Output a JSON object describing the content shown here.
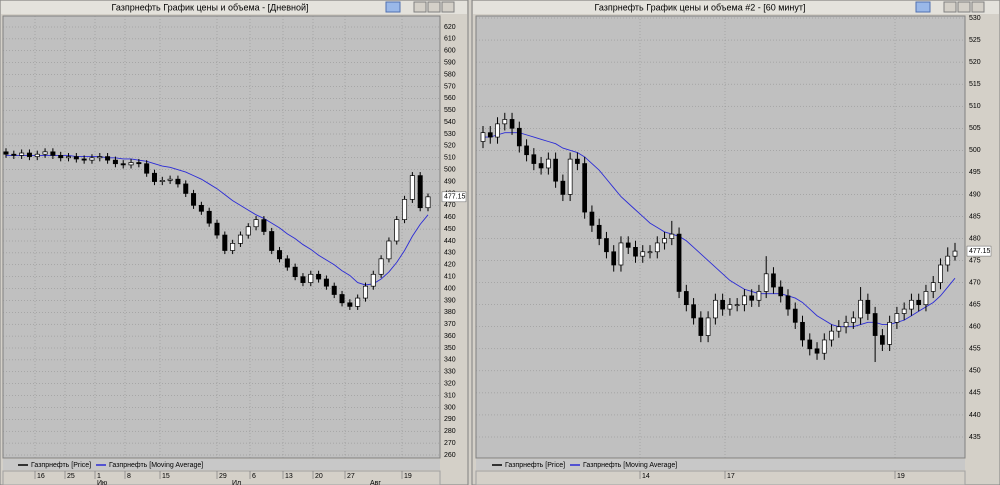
{
  "chart_data": [
    {
      "type": "candlestick",
      "title": "Газпрнефть График цены и объема - [Дневной]",
      "series": [
        {
          "name": "Газпрнефть [Price]",
          "color": "#000000",
          "open": [
            515,
            513,
            512,
            514,
            511,
            513,
            515,
            512,
            510,
            511,
            509,
            508,
            510,
            511,
            508,
            505,
            504,
            506,
            505,
            497,
            490,
            491,
            492,
            488,
            480,
            470,
            465,
            455,
            445,
            432,
            438,
            445,
            452,
            458,
            448,
            432,
            425,
            418,
            410,
            405,
            412,
            408,
            402,
            395,
            388,
            385,
            392,
            402,
            412,
            425,
            440,
            458,
            475,
            495,
            468
          ],
          "high": [
            518,
            516,
            517,
            517,
            516,
            518,
            518,
            515,
            514,
            514,
            512,
            513,
            514,
            514,
            511,
            508,
            509,
            509,
            508,
            500,
            494,
            495,
            495,
            491,
            483,
            473,
            468,
            458,
            448,
            441,
            448,
            455,
            461,
            461,
            451,
            435,
            428,
            421,
            413,
            415,
            415,
            411,
            405,
            398,
            391,
            395,
            405,
            415,
            428,
            443,
            461,
            478,
            498,
            498,
            480
          ],
          "low": [
            510,
            509,
            509,
            508,
            508,
            510,
            509,
            507,
            507,
            506,
            505,
            505,
            507,
            505,
            502,
            501,
            501,
            502,
            494,
            487,
            487,
            488,
            485,
            477,
            467,
            462,
            452,
            442,
            429,
            429,
            435,
            442,
            449,
            445,
            429,
            422,
            415,
            407,
            402,
            402,
            405,
            399,
            392,
            385,
            382,
            382,
            389,
            399,
            409,
            422,
            437,
            455,
            472,
            465,
            465
          ],
          "close": [
            513,
            512,
            514,
            511,
            513,
            515,
            512,
            510,
            511,
            509,
            508,
            510,
            511,
            508,
            505,
            504,
            506,
            505,
            497,
            490,
            491,
            492,
            488,
            480,
            470,
            465,
            455,
            445,
            432,
            438,
            445,
            452,
            458,
            448,
            432,
            425,
            418,
            410,
            405,
            412,
            408,
            402,
            395,
            388,
            385,
            392,
            402,
            412,
            425,
            440,
            458,
            475,
            495,
            468,
            477.15
          ]
        },
        {
          "name": "Газпрнефть [Moving Average]",
          "color": "#2b2bd6",
          "values": [
            512,
            512,
            512,
            512,
            512,
            512,
            512,
            512,
            512,
            511,
            511,
            511,
            511,
            510,
            510,
            509,
            509,
            508,
            507,
            505,
            503,
            502,
            500,
            498,
            495,
            492,
            488,
            484,
            479,
            474,
            470,
            466,
            462,
            459,
            455,
            451,
            446,
            442,
            437,
            433,
            428,
            424,
            420,
            415,
            411,
            405,
            403,
            404,
            408,
            414,
            422,
            432,
            444,
            454,
            462
          ]
        }
      ],
      "ylim": [
        260,
        620
      ],
      "yticks": [
        620,
        610,
        600,
        590,
        580,
        570,
        560,
        550,
        540,
        530,
        520,
        510,
        500,
        490,
        480,
        470,
        460,
        450,
        440,
        430,
        420,
        410,
        400,
        390,
        380,
        370,
        360,
        350,
        340,
        330,
        320,
        310,
        300,
        290,
        280,
        270,
        260
      ],
      "xtick_labels": [
        "16",
        "25",
        "1",
        "8",
        "15",
        "29",
        "6",
        "13",
        "20",
        "27",
        "19"
      ],
      "month_labels": [
        "Ию",
        "Ил",
        "Авг"
      ],
      "grid": true
    },
    {
      "type": "candlestick",
      "title": "Газпрнефть График цены и объема #2 - [60 минут]",
      "series": [
        {
          "name": "Газпрнефть [Price]",
          "color": "#000000",
          "open": [
            502,
            504,
            503,
            506,
            507,
            505,
            501,
            499,
            497,
            496,
            498,
            493,
            490,
            498,
            497,
            486,
            483,
            480,
            477,
            474,
            479,
            478,
            476,
            477,
            477,
            479,
            480,
            481,
            468,
            465,
            462,
            458,
            462,
            466,
            464,
            465,
            465,
            467,
            466,
            468,
            472,
            469,
            467,
            464,
            461,
            457,
            455,
            454,
            457,
            459,
            460,
            461,
            462,
            466,
            463,
            458,
            456,
            461,
            463,
            464,
            466,
            465,
            468,
            470,
            474,
            476
          ],
          "high": [
            505.5,
            505.5,
            507.5,
            508.5,
            508.5,
            506.5,
            502.5,
            500.5,
            498.5,
            499.5,
            499.5,
            494.5,
            499.5,
            499.5,
            498.5,
            487.5,
            484.5,
            481.5,
            478.5,
            480.5,
            480.5,
            479.5,
            478.5,
            478.5,
            480.5,
            481.5,
            484,
            482.5,
            469.5,
            466.5,
            463.5,
            463.5,
            467.5,
            467.5,
            466.5,
            466.5,
            468.5,
            468.5,
            469.5,
            476,
            473.5,
            470.5,
            468.5,
            465.5,
            462.5,
            458.5,
            456.5,
            458.5,
            460.5,
            461.5,
            462.5,
            463.5,
            469,
            467.5,
            464.5,
            459.5,
            462.5,
            464.5,
            465.5,
            467.5,
            467.5,
            469.5,
            471.5,
            475.5,
            478,
            479
          ],
          "low": [
            500.5,
            501.5,
            501.5,
            504.5,
            503.5,
            499.5,
            497.5,
            495.5,
            494.5,
            494.5,
            491.5,
            488.5,
            488.5,
            495.5,
            484.5,
            481.5,
            478.5,
            475.5,
            472.5,
            472.5,
            476.5,
            474.5,
            474.5,
            475.5,
            475.5,
            477.5,
            478.5,
            466.5,
            463.5,
            460.5,
            456.5,
            456.5,
            460.5,
            462.5,
            462.5,
            463.5,
            463.5,
            464.5,
            464.5,
            466.5,
            467.5,
            465.5,
            462.5,
            459.5,
            455.5,
            453.5,
            452.5,
            452.5,
            455.5,
            457.5,
            458.5,
            459.5,
            460.5,
            461.5,
            452,
            454.5,
            454.5,
            459.5,
            461.5,
            462.5,
            463.5,
            463.5,
            466.5,
            468.5,
            472.5,
            475
          ],
          "close": [
            504,
            503,
            506,
            507,
            505,
            501,
            499,
            497,
            496,
            498,
            493,
            490,
            498,
            497,
            486,
            483,
            480,
            477,
            474,
            479,
            478,
            476,
            477,
            477,
            479,
            480,
            481,
            468,
            465,
            462,
            458,
            462,
            466,
            464,
            465,
            465,
            467,
            466,
            468,
            472,
            469,
            467,
            464,
            461,
            457,
            455,
            454,
            457,
            459,
            460,
            461,
            462,
            466,
            463,
            458,
            456,
            461,
            463,
            464,
            466,
            465,
            468,
            470,
            474,
            476,
            477.15
          ]
        },
        {
          "name": "Газпрнефть [Moving Average]",
          "color": "#2b2bd6",
          "values": [
            503,
            503,
            503.5,
            504,
            504,
            504,
            503.5,
            503,
            502.5,
            502,
            501.5,
            500.5,
            500,
            499.5,
            498.5,
            497,
            495.5,
            493.5,
            491.5,
            489.5,
            488,
            486.5,
            485,
            483.5,
            482.5,
            481.5,
            481,
            480.5,
            479.5,
            478,
            476.5,
            475,
            473.5,
            472,
            470.5,
            469.5,
            468.5,
            468,
            467.5,
            467.5,
            467.5,
            467.5,
            467,
            466.5,
            465.5,
            464,
            462.5,
            461.5,
            460.5,
            460,
            460,
            460,
            460.5,
            461,
            461,
            460.5,
            460.5,
            461,
            461.5,
            462.5,
            463.5,
            464.5,
            465.5,
            467,
            469,
            471
          ]
        }
      ],
      "ylim": [
        435,
        530
      ],
      "yticks": [
        530,
        525,
        520,
        515,
        510,
        505,
        500,
        495,
        490,
        485,
        480,
        475,
        470,
        465,
        460,
        455,
        450,
        445,
        440,
        435
      ],
      "xtick_labels": [
        "14",
        "17",
        "19"
      ],
      "grid": true
    }
  ]
}
